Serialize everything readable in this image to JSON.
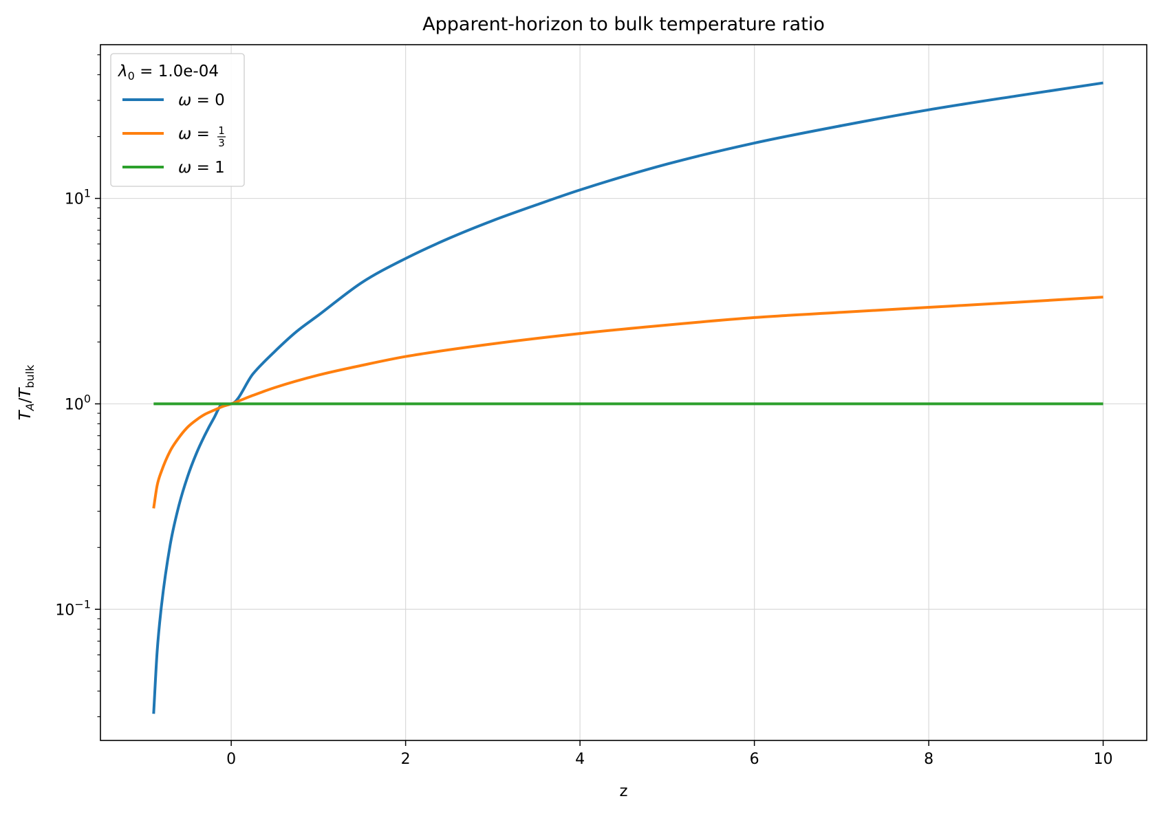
{
  "chart_data": {
    "type": "line",
    "title": "Apparent-horizon to bulk temperature ratio",
    "xlabel": "z",
    "ylabel": {
      "base": "T",
      "sub_a": "A",
      "slash": "/",
      "base2": "T",
      "sub_b": "bulk"
    },
    "xlim": [
      -1.5,
      10.5
    ],
    "ylim": [
      0.023,
      56
    ],
    "yscale": "log",
    "grid": true,
    "legend_placement": "top-left",
    "legend_title": {
      "symbol": "λ",
      "sub": "0",
      "rest": " = 1.0e-04"
    },
    "x_ticks": [
      {
        "value": 0,
        "label": "0"
      },
      {
        "value": 2,
        "label": "2"
      },
      {
        "value": 4,
        "label": "4"
      },
      {
        "value": 6,
        "label": "6"
      },
      {
        "value": 8,
        "label": "8"
      },
      {
        "value": 10,
        "label": "10"
      }
    ],
    "y_ticks": [
      {
        "value": 10,
        "base": "10",
        "exp": "1"
      },
      {
        "value": 1,
        "base": "10",
        "exp": "0"
      },
      {
        "value": 0.1,
        "base": "10",
        "exp": "−1"
      }
    ],
    "series": [
      {
        "name": "ω = 0",
        "legend": {
          "symbol": "ω",
          "rest": " = 0"
        },
        "color": "#1f77b4",
        "points": [
          [
            -0.89,
            0.031
          ],
          [
            -0.85,
            0.062
          ],
          [
            -0.8,
            0.104
          ],
          [
            -0.7,
            0.206
          ],
          [
            -0.6,
            0.32
          ],
          [
            -0.5,
            0.443
          ],
          [
            -0.4,
            0.573
          ],
          [
            -0.3,
            0.708
          ],
          [
            -0.2,
            0.85
          ],
          [
            -0.1,
            0.996
          ],
          [
            0,
            1.0
          ],
          [
            0.25,
            1.4
          ],
          [
            0.5,
            1.8
          ],
          [
            0.75,
            2.25
          ],
          [
            1,
            2.7
          ],
          [
            1.5,
            3.9
          ],
          [
            2,
            5.1
          ],
          [
            2.5,
            6.4
          ],
          [
            3,
            7.8
          ],
          [
            3.5,
            9.3
          ],
          [
            4,
            11.0
          ],
          [
            5,
            14.7
          ],
          [
            6,
            18.6
          ],
          [
            7,
            22.6
          ],
          [
            8,
            27.0
          ],
          [
            9,
            31.5
          ],
          [
            10,
            36.5
          ]
        ]
      },
      {
        "name": "ω = 1/3",
        "legend": {
          "symbol": "ω",
          "rest": " = ",
          "num": "1",
          "den": "3"
        },
        "color": "#ff7f0e",
        "points": [
          [
            -0.89,
            0.31
          ],
          [
            -0.85,
            0.4
          ],
          [
            -0.8,
            0.47
          ],
          [
            -0.7,
            0.59
          ],
          [
            -0.6,
            0.685
          ],
          [
            -0.5,
            0.77
          ],
          [
            -0.4,
            0.835
          ],
          [
            -0.3,
            0.89
          ],
          [
            -0.2,
            0.93
          ],
          [
            -0.1,
            0.97
          ],
          [
            0,
            1.0
          ],
          [
            0.25,
            1.1
          ],
          [
            0.5,
            1.2
          ],
          [
            1,
            1.38
          ],
          [
            1.5,
            1.54
          ],
          [
            2,
            1.7
          ],
          [
            3,
            1.96
          ],
          [
            4,
            2.2
          ],
          [
            5,
            2.42
          ],
          [
            6,
            2.63
          ],
          [
            7,
            2.79
          ],
          [
            8,
            2.95
          ],
          [
            9,
            3.12
          ],
          [
            10,
            3.31
          ]
        ]
      },
      {
        "name": "ω = 1",
        "legend": {
          "symbol": "ω",
          "rest": " = 1"
        },
        "color": "#2ca02c",
        "points": [
          [
            -0.89,
            1.0
          ],
          [
            10,
            1.0
          ]
        ]
      }
    ]
  }
}
